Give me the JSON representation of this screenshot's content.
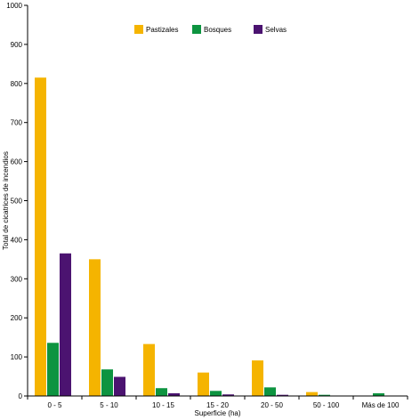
{
  "chart_data": {
    "type": "bar",
    "xlabel": "Superficie (ha)",
    "ylabel": "Total de cicatrices de incendios",
    "ylim": [
      0,
      1000
    ],
    "yticks": [
      0,
      100,
      200,
      300,
      400,
      500,
      600,
      700,
      800,
      900,
      1000
    ],
    "categories": [
      "0 - 5",
      "5 - 10",
      "10 - 15",
      "15 - 20",
      "20 - 50",
      "50 - 100",
      "Más de 100"
    ],
    "series": [
      {
        "name": "Pastizales",
        "color": "#f5b400",
        "values": [
          815,
          350,
          133,
          60,
          91,
          10,
          0
        ]
      },
      {
        "name": "Bosques",
        "color": "#0d9440",
        "values": [
          136,
          68,
          20,
          13,
          22,
          3,
          7
        ]
      },
      {
        "name": "Selvas",
        "color": "#4b1370",
        "values": [
          365,
          49,
          7,
          4,
          3,
          0,
          0
        ]
      }
    ],
    "legend_position": "top",
    "grid": false
  }
}
